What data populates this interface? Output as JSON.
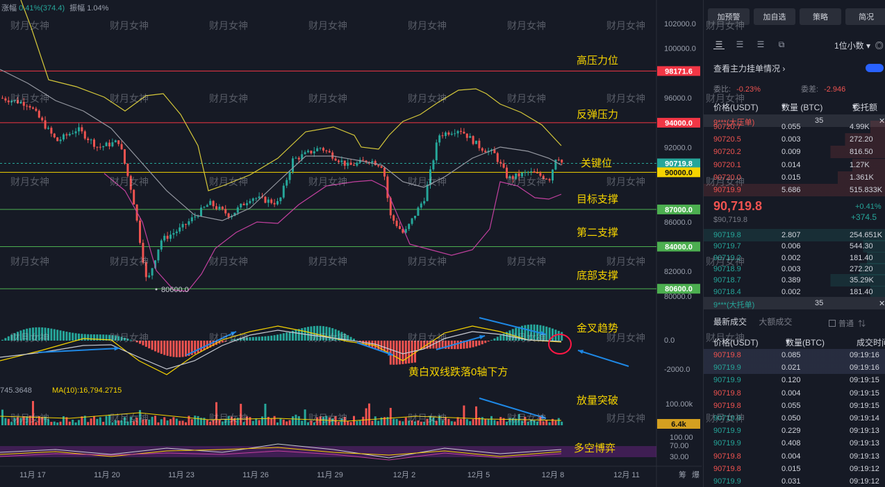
{
  "top_info": {
    "change_label": "涨幅",
    "change_value": "0.41%(374.4)",
    "amp_label": "振幅",
    "amp_value": "1.04%"
  },
  "price_axis": [
    "102000.0",
    "100000.0",
    "96000.0",
    "92000.0",
    "86000.0",
    "82000.0",
    "80000.0"
  ],
  "price_tags": [
    {
      "text": "98171.6",
      "color": "#f23645"
    },
    {
      "text": "94000.0",
      "color": "#f23645"
    },
    {
      "text": "90719.8",
      "color": "#26a69a"
    },
    {
      "text": "90000.0",
      "color": "#f5d300"
    },
    {
      "text": "87000.0",
      "color": "#4caf50"
    },
    {
      "text": "84000.0",
      "color": "#4caf50"
    },
    {
      "text": "80600.0",
      "color": "#4caf50"
    }
  ],
  "level_labels": [
    "高压力位",
    "反弹压力",
    "关键位",
    "目标支撑",
    "第二支撑",
    "底部支撑"
  ],
  "annotations": {
    "golden_cross": "金叉趋势",
    "macd_note": "黄白双线跌落0轴下方",
    "volume_break": "放量突破",
    "long_short": "多空博弈",
    "low_marker": "80600.0"
  },
  "macd_axis": [
    "0.0",
    "-2000.0"
  ],
  "volume": {
    "ma_left": "745.3648",
    "ma10_label": "MA(10):16,794.2715",
    "axis_top": "100.00k",
    "tag": "6.4k"
  },
  "osc_axis": [
    "100.00",
    "70.00",
    "30.00"
  ],
  "dates": [
    "11月 17",
    "11月 20",
    "11月 23",
    "11月 26",
    "11月 29",
    "12月 2",
    "12月 5",
    "12月 8",
    "12月 11"
  ],
  "bottom_right": [
    "筹",
    "爆"
  ],
  "watermark": "财月女神",
  "panel": {
    "buttons": [
      "加预警",
      "加自选",
      "策略",
      "简况"
    ],
    "decimal": "1位小数",
    "view_label": "查看主力挂单情况",
    "ratio_label": "委比:",
    "ratio_value": "-0.23%",
    "diff_label": "委差:",
    "diff_value": "-2.946",
    "headers": [
      "价格(USDT)",
      "数量 (BTC)",
      "委托额"
    ],
    "ask_banner": {
      "name": "9***(大压单)",
      "qty": "35"
    },
    "asks": [
      [
        "90720.7",
        "0.055",
        "4.99K"
      ],
      [
        "90720.5",
        "0.003",
        "272.20"
      ],
      [
        "90720.2",
        "0.009",
        "816.50"
      ],
      [
        "90720.1",
        "0.014",
        "1.27K"
      ],
      [
        "90720.0",
        "0.015",
        "1.361K"
      ],
      [
        "90719.9",
        "5.686",
        "515.833K"
      ]
    ],
    "mid_price": "90,719.8",
    "mid_sub": "$90,719.8",
    "mid_pct": "+0.41%",
    "mid_chg": "+374.5",
    "bids": [
      [
        "90719.8",
        "2.807",
        "254.651K"
      ],
      [
        "90719.7",
        "0.006",
        "544.30"
      ],
      [
        "90719.2",
        "0.002",
        "181.40"
      ],
      [
        "90718.9",
        "0.003",
        "272.20"
      ],
      [
        "90718.7",
        "0.389",
        "35.29K"
      ],
      [
        "90718.4",
        "0.002",
        "181.40"
      ]
    ],
    "bid_banner": {
      "name": "9***(大托单)",
      "qty": "35"
    },
    "tab_latest": "最新成交",
    "tab_large": "大额成交",
    "normal_label": "普通",
    "trade_headers": [
      "价格(USDT)",
      "数量(BTC)",
      "成交时间"
    ],
    "trades": [
      [
        "90719.8",
        "0.085",
        "09:19:16",
        "s"
      ],
      [
        "90719.9",
        "0.021",
        "09:19:16",
        "b"
      ],
      [
        "90719.9",
        "0.120",
        "09:19:15",
        "b"
      ],
      [
        "90719.8",
        "0.004",
        "09:19:15",
        "s"
      ],
      [
        "90719.8",
        "0.055",
        "09:19:15",
        "s"
      ],
      [
        "90719.9",
        "0.050",
        "09:19:14",
        "b"
      ],
      [
        "90719.9",
        "0.229",
        "09:19:13",
        "b"
      ],
      [
        "90719.9",
        "0.408",
        "09:19:13",
        "b"
      ],
      [
        "90719.8",
        "0.004",
        "09:19:13",
        "s"
      ],
      [
        "90719.8",
        "0.015",
        "09:19:12",
        "s"
      ],
      [
        "90719.9",
        "0.031",
        "09:19:12",
        "b"
      ]
    ]
  },
  "colors": {
    "up": "#26a69a",
    "down": "#ef5350",
    "boll": "#d6c93a",
    "ma": "#9598a1",
    "lower": "#c2409f",
    "macd_dif": "#f5d300",
    "macd_dea": "#c9ccd4",
    "arrow": "#1e88e5",
    "circle": "#ff1744"
  }
}
